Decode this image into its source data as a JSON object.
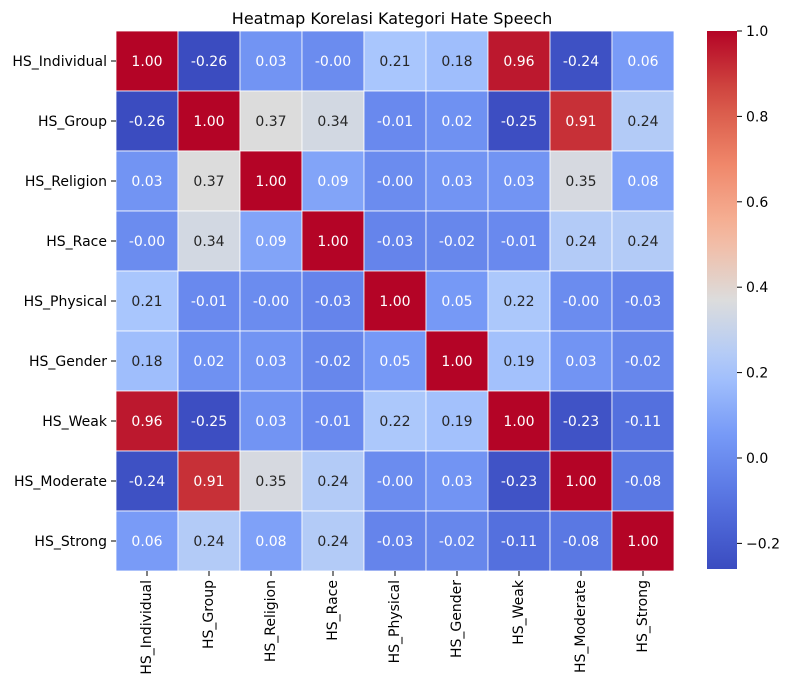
{
  "chart_data": {
    "type": "heatmap",
    "title": "Heatmap Korelasi Kategori Hate Speech",
    "xlabel": "",
    "ylabel": "",
    "categories": [
      "HS_Individual",
      "HS_Group",
      "HS_Religion",
      "HS_Race",
      "HS_Physical",
      "HS_Gender",
      "HS_Weak",
      "HS_Moderate",
      "HS_Strong"
    ],
    "values": [
      [
        1.0,
        -0.26,
        0.03,
        -0.0,
        0.21,
        0.18,
        0.96,
        -0.24,
        0.06
      ],
      [
        -0.26,
        1.0,
        0.37,
        0.34,
        -0.01,
        0.02,
        -0.25,
        0.91,
        0.24
      ],
      [
        0.03,
        0.37,
        1.0,
        0.09,
        -0.0,
        0.03,
        0.03,
        0.35,
        0.08
      ],
      [
        -0.0,
        0.34,
        0.09,
        1.0,
        -0.03,
        -0.02,
        -0.01,
        0.24,
        0.24
      ],
      [
        0.21,
        -0.01,
        -0.0,
        -0.03,
        1.0,
        0.05,
        0.22,
        -0.0,
        -0.03
      ],
      [
        0.18,
        0.02,
        0.03,
        -0.02,
        0.05,
        1.0,
        0.19,
        0.03,
        -0.02
      ],
      [
        0.96,
        -0.25,
        0.03,
        -0.01,
        0.22,
        0.19,
        1.0,
        -0.23,
        -0.11
      ],
      [
        -0.24,
        0.91,
        0.35,
        0.24,
        -0.0,
        0.03,
        -0.23,
        1.0,
        -0.08
      ],
      [
        0.06,
        0.24,
        0.08,
        0.24,
        -0.03,
        -0.02,
        -0.11,
        -0.08,
        1.0
      ]
    ],
    "labels": [
      [
        "1.00",
        "-0.26",
        "0.03",
        "-0.00",
        "0.21",
        "0.18",
        "0.96",
        "-0.24",
        "0.06"
      ],
      [
        "-0.26",
        "1.00",
        "0.37",
        "0.34",
        "-0.01",
        "0.02",
        "-0.25",
        "0.91",
        "0.24"
      ],
      [
        "0.03",
        "0.37",
        "1.00",
        "0.09",
        "-0.00",
        "0.03",
        "0.03",
        "0.35",
        "0.08"
      ],
      [
        "-0.00",
        "0.34",
        "0.09",
        "1.00",
        "-0.03",
        "-0.02",
        "-0.01",
        "0.24",
        "0.24"
      ],
      [
        "0.21",
        "-0.01",
        "-0.00",
        "-0.03",
        "1.00",
        "0.05",
        "0.22",
        "-0.00",
        "-0.03"
      ],
      [
        "0.18",
        "0.02",
        "0.03",
        "-0.02",
        "0.05",
        "1.00",
        "0.19",
        "0.03",
        "-0.02"
      ],
      [
        "0.96",
        "-0.25",
        "0.03",
        "-0.01",
        "0.22",
        "0.19",
        "1.00",
        "-0.23",
        "-0.11"
      ],
      [
        "-0.24",
        "0.91",
        "0.35",
        "0.24",
        "-0.00",
        "0.03",
        "-0.23",
        "1.00",
        "-0.08"
      ],
      [
        "0.06",
        "0.24",
        "0.08",
        "0.24",
        "-0.03",
        "-0.02",
        "-0.11",
        "-0.08",
        "1.00"
      ]
    ],
    "colormap": "coolwarm",
    "vmin": -0.26,
    "vmax": 1.0,
    "colorbar_ticks": [
      -0.2,
      0.0,
      0.2,
      0.4,
      0.6,
      0.8,
      1.0
    ],
    "colorbar_tick_labels": [
      "−0.2",
      "0.0",
      "0.2",
      "0.4",
      "0.6",
      "0.8",
      "1.0"
    ],
    "cell_border_color": "#ffffff",
    "grid": false,
    "legend": "colorbar-right"
  }
}
